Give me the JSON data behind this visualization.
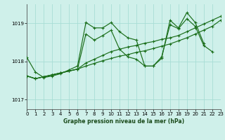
{
  "title": "Graphe pression niveau de la mer (hPa)",
  "bg_color": "#cff0ea",
  "grid_color": "#a8ddd5",
  "line_color": "#1a6e1a",
  "ylim": [
    1016.75,
    1019.5
  ],
  "yticks": [
    1017,
    1018,
    1019
  ],
  "xlim": [
    0,
    23
  ],
  "xticks": [
    0,
    1,
    2,
    3,
    4,
    5,
    6,
    7,
    8,
    9,
    10,
    11,
    12,
    13,
    14,
    15,
    16,
    17,
    18,
    19,
    20,
    21,
    22,
    23
  ],
  "series_data": {
    "s1": {
      "x": [
        0,
        1,
        2,
        3,
        4,
        5,
        6,
        7,
        8,
        9,
        10,
        11,
        12,
        13,
        14,
        15,
        16,
        17,
        18,
        19,
        20,
        21
      ],
      "y": [
        1018.1,
        1017.72,
        1017.58,
        1017.62,
        1017.68,
        1017.78,
        1017.88,
        1019.02,
        1018.88,
        1018.88,
        1019.02,
        1018.78,
        1018.62,
        1018.56,
        1017.88,
        1017.88,
        1018.08,
        1019.08,
        1018.88,
        1019.28,
        1019.02,
        1018.48
      ]
    },
    "s2": {
      "x": [
        0,
        1,
        2,
        3,
        4,
        5,
        6,
        7,
        8,
        9,
        10,
        11,
        12,
        13,
        14,
        15,
        16,
        17,
        18,
        19,
        20,
        21,
        22,
        23
      ],
      "y": [
        1017.62,
        1017.55,
        1017.6,
        1017.65,
        1017.7,
        1017.75,
        1017.8,
        1017.88,
        1017.95,
        1018.02,
        1018.08,
        1018.14,
        1018.18,
        1018.24,
        1018.28,
        1018.34,
        1018.4,
        1018.46,
        1018.54,
        1018.62,
        1018.72,
        1018.82,
        1018.92,
        1019.08
      ]
    },
    "s3": {
      "x": [
        0,
        1,
        2,
        3,
        4,
        5,
        6,
        7,
        8,
        9,
        10,
        11,
        12,
        13,
        14,
        15,
        16,
        17,
        18,
        19,
        20,
        21,
        22
      ],
      "y": [
        1017.62,
        1017.55,
        1017.6,
        1017.65,
        1017.7,
        1017.75,
        1017.8,
        1018.72,
        1018.56,
        1018.68,
        1018.82,
        1018.32,
        1018.12,
        1018.06,
        1017.88,
        1017.88,
        1018.12,
        1018.96,
        1018.86,
        1019.12,
        1018.92,
        1018.42,
        1018.26
      ]
    },
    "s4": {
      "x": [
        0,
        1,
        2,
        3,
        4,
        5,
        6,
        7,
        8,
        9,
        10,
        11,
        12,
        13,
        14,
        15,
        16,
        17,
        18,
        19,
        20,
        21,
        22,
        23
      ],
      "y": [
        1017.62,
        1017.55,
        1017.6,
        1017.65,
        1017.7,
        1017.75,
        1017.8,
        1017.96,
        1018.06,
        1018.16,
        1018.26,
        1018.32,
        1018.38,
        1018.42,
        1018.48,
        1018.52,
        1018.58,
        1018.62,
        1018.68,
        1018.78,
        1018.88,
        1018.98,
        1019.08,
        1019.18
      ]
    }
  }
}
